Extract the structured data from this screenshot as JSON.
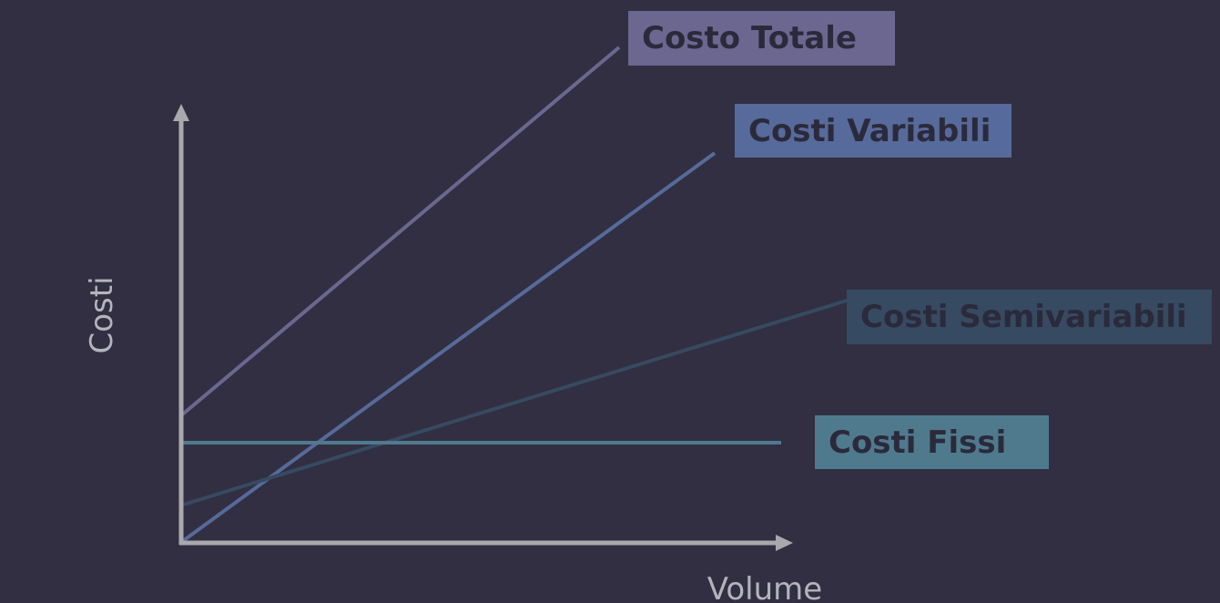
{
  "diagram": {
    "y_axis_label": "Costi",
    "x_axis_label": "Volume",
    "lines": [
      {
        "key": "totale",
        "label": "Costo Totale",
        "color": "#6b6790"
      },
      {
        "key": "variabili",
        "label": "Costi Variabili",
        "color": "#566a9b"
      },
      {
        "key": "semivar",
        "label": "Costi Semivariabili",
        "color": "#364a61"
      },
      {
        "key": "fissi",
        "label": "Costi Fissi",
        "color": "#4f7a8d"
      }
    ],
    "axis_color": "#a9a9ad"
  }
}
